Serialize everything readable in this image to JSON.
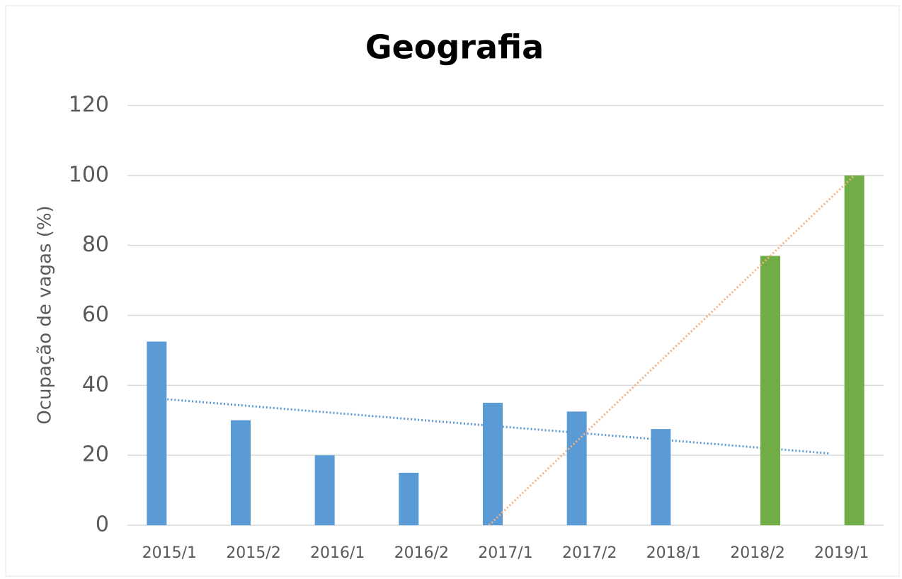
{
  "chart_data": {
    "type": "bar",
    "title": "Geografia",
    "y_label": "Ocupação de vagas (%)",
    "categories": [
      "2015/1",
      "2015/2",
      "2016/1",
      "2016/2",
      "2017/1",
      "2017/2",
      "2018/1",
      "2018/2",
      "2019/1"
    ],
    "series": [
      {
        "color": "#5b9bd5",
        "trendline": "linear",
        "trendline_color": "#5b9bd5",
        "values": [
          52.5,
          30,
          20,
          15,
          35,
          32.5,
          27.5,
          null,
          null
        ]
      },
      {
        "color": "#70ad47",
        "trendline": "linear",
        "trendline_color": "#f4b183",
        "values": [
          null,
          null,
          null,
          null,
          null,
          null,
          null,
          77,
          100
        ]
      }
    ],
    "ylim": [
      0,
      120
    ],
    "yticks": [
      0,
      20,
      40,
      60,
      80,
      100,
      120
    ],
    "grid": true
  }
}
